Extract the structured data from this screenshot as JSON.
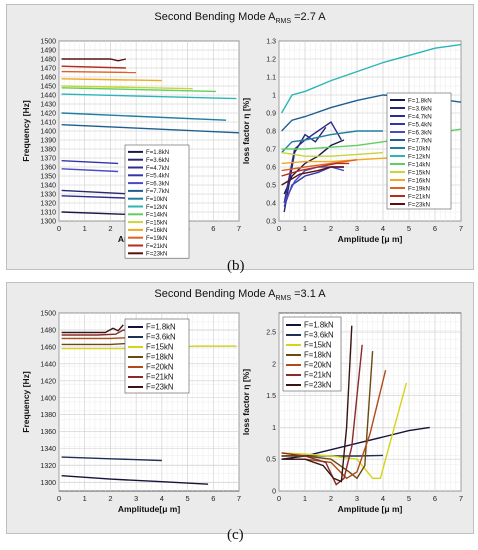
{
  "figure": {
    "caption_b": "(b)",
    "caption_c": "(c)"
  },
  "panel_b": {
    "title_main": "Second Bending Mode  A",
    "title_sub": "RMS",
    "title_tail": " =2.7 A"
  },
  "panel_c": {
    "title_main": "Second Bending Mode  A",
    "title_sub": "RMS",
    "title_tail": " =3.1 A"
  },
  "chart_data": [
    {
      "id": "b-freq",
      "type": "line",
      "xlabel": "Amplitude[μ m]",
      "ylabel": "Frequency [Hz]",
      "xlim": [
        0,
        7
      ],
      "ylim": [
        1300,
        1500
      ],
      "xticks": [
        0,
        1,
        2,
        3,
        4,
        5,
        6,
        7
      ],
      "yticks": [
        1300,
        1310,
        1320,
        1330,
        1340,
        1350,
        1360,
        1370,
        1380,
        1390,
        1400,
        1410,
        1420,
        1430,
        1440,
        1450,
        1460,
        1470,
        1480,
        1490,
        1500
      ],
      "grid": true,
      "legend": "bottom-right",
      "series": [
        {
          "name": "F=1.8kN",
          "color": "#1a1a4a",
          "x": [
            0.1,
            3.0
          ],
          "y": [
            1310,
            1307
          ]
        },
        {
          "name": "F=3.6kN",
          "color": "#262673",
          "x": [
            0.1,
            3.5
          ],
          "y": [
            1334,
            1329
          ]
        },
        {
          "name": "F=4.7kN",
          "color": "#2d2d8f",
          "x": [
            0.1,
            3.1
          ],
          "y": [
            1328,
            1325
          ]
        },
        {
          "name": "F=5.4kN",
          "color": "#3535a8",
          "x": [
            0.1,
            2.3
          ],
          "y": [
            1367,
            1364
          ]
        },
        {
          "name": "F=6.3kN",
          "color": "#4a4ac9",
          "x": [
            0.1,
            2.3
          ],
          "y": [
            1358,
            1355
          ]
        },
        {
          "name": "F=7.7kN",
          "color": "#1f5f8f",
          "x": [
            0.1,
            7.0
          ],
          "y": [
            1407,
            1398
          ]
        },
        {
          "name": "F=10kN",
          "color": "#1e7fa0",
          "x": [
            0.1,
            6.5
          ],
          "y": [
            1420,
            1412
          ]
        },
        {
          "name": "F=12kN",
          "color": "#2cb5b5",
          "x": [
            0.1,
            6.9
          ],
          "y": [
            1441,
            1436
          ]
        },
        {
          "name": "F=14kN",
          "color": "#5fcf5f",
          "x": [
            0.1,
            6.1
          ],
          "y": [
            1448,
            1444
          ]
        },
        {
          "name": "F=15kN",
          "color": "#c8d635",
          "x": [
            0.1,
            5.2
          ],
          "y": [
            1450,
            1447
          ]
        },
        {
          "name": "F=16kN",
          "color": "#f2a81f",
          "x": [
            0.1,
            4.0
          ],
          "y": [
            1458,
            1456
          ]
        },
        {
          "name": "F=19kN",
          "color": "#e06020",
          "x": [
            0.1,
            3.0
          ],
          "y": [
            1466,
            1465
          ]
        },
        {
          "name": "F=21kN",
          "color": "#b52a1a",
          "x": [
            0.1,
            2.6
          ],
          "y": [
            1472,
            1470
          ]
        },
        {
          "name": "F=23kN",
          "color": "#5a1010",
          "x": [
            0.1,
            2.0,
            2.3,
            2.6
          ],
          "y": [
            1480,
            1480,
            1478,
            1480
          ]
        }
      ]
    },
    {
      "id": "b-loss",
      "type": "line",
      "xlabel": "Amplitude [μ m]",
      "ylabel": "loss factor η [%]",
      "xlim": [
        0,
        7
      ],
      "ylim": [
        0.3,
        1.3
      ],
      "xticks": [
        0,
        1,
        2,
        3,
        4,
        5,
        6,
        7
      ],
      "yticks": [
        0.3,
        0.4,
        0.5,
        0.6,
        0.7,
        0.8,
        0.9,
        1.0,
        1.1,
        1.2,
        1.3
      ],
      "grid": true,
      "legend": "right",
      "series": [
        {
          "name": "F=1.8kN",
          "color": "#1a1a4a",
          "x": [
            0.2,
            0.5,
            1.0,
            1.5,
            2.0,
            2.5
          ],
          "y": [
            0.45,
            0.55,
            0.62,
            0.66,
            0.72,
            0.75
          ]
        },
        {
          "name": "F=3.6kN",
          "color": "#262673",
          "x": [
            0.2,
            0.6,
            1.0,
            1.4,
            1.8
          ],
          "y": [
            0.35,
            0.68,
            0.78,
            0.74,
            0.82
          ]
        },
        {
          "name": "F=4.7kN",
          "color": "#2d2d8f",
          "x": [
            0.2,
            0.6,
            1.0,
            1.5,
            2.0,
            2.4
          ],
          "y": [
            0.4,
            0.7,
            0.75,
            0.8,
            0.85,
            0.75
          ]
        },
        {
          "name": "F=5.4kN",
          "color": "#3535a8",
          "x": [
            0.2,
            0.5,
            1.0,
            1.5,
            2.0,
            2.5
          ],
          "y": [
            0.38,
            0.5,
            0.55,
            0.57,
            0.6,
            0.6
          ]
        },
        {
          "name": "F=6.3kN",
          "color": "#4a4ac9",
          "x": [
            0.2,
            0.6,
            1.0,
            1.5,
            2.0,
            2.5
          ],
          "y": [
            0.4,
            0.52,
            0.58,
            0.6,
            0.6,
            0.58
          ]
        },
        {
          "name": "F=7.7kN",
          "color": "#1f5f8f",
          "x": [
            0.1,
            0.5,
            1,
            2,
            3,
            4,
            5,
            6,
            7
          ],
          "y": [
            0.8,
            0.86,
            0.88,
            0.93,
            0.97,
            1.0,
            0.99,
            0.98,
            0.96
          ]
        },
        {
          "name": "F=10kN",
          "color": "#1e7fa0",
          "x": [
            0.1,
            0.5,
            1,
            2,
            3,
            4
          ],
          "y": [
            0.68,
            0.74,
            0.75,
            0.78,
            0.8,
            0.8
          ]
        },
        {
          "name": "F=12kN",
          "color": "#2cb5b5",
          "x": [
            0.1,
            0.5,
            1,
            2,
            3,
            4,
            5,
            6,
            7
          ],
          "y": [
            0.9,
            1.0,
            1.02,
            1.08,
            1.13,
            1.18,
            1.22,
            1.26,
            1.28
          ]
        },
        {
          "name": "F=14kN",
          "color": "#5fcf5f",
          "x": [
            0.1,
            1,
            2,
            3,
            4,
            5,
            6,
            7
          ],
          "y": [
            0.7,
            0.7,
            0.71,
            0.72,
            0.74,
            0.76,
            0.79,
            0.81
          ]
        },
        {
          "name": "F=15kN",
          "color": "#c8d635",
          "x": [
            0.1,
            1,
            2,
            3,
            4
          ],
          "y": [
            0.68,
            0.66,
            0.66,
            0.67,
            0.68
          ]
        },
        {
          "name": "F=16kN",
          "color": "#f2a81f",
          "x": [
            0.1,
            1,
            2,
            3,
            4.2
          ],
          "y": [
            0.62,
            0.63,
            0.63,
            0.64,
            0.65
          ]
        },
        {
          "name": "F=19kN",
          "color": "#e06020",
          "x": [
            0.1,
            1,
            2,
            3
          ],
          "y": [
            0.58,
            0.6,
            0.62,
            0.64
          ]
        },
        {
          "name": "F=21kN",
          "color": "#b52a1a",
          "x": [
            0.1,
            0.8,
            1.5,
            2.2,
            2.7
          ],
          "y": [
            0.55,
            0.58,
            0.6,
            0.62,
            0.62
          ]
        },
        {
          "name": "F=23kN",
          "color": "#5a1010",
          "x": [
            0.1,
            0.8,
            1.5,
            2.0,
            2.5
          ],
          "y": [
            0.5,
            0.56,
            0.58,
            0.6,
            0.6
          ]
        }
      ]
    },
    {
      "id": "c-freq",
      "type": "line",
      "xlabel": "Amplitude[μ m]",
      "ylabel": "Frequency [Hz]",
      "xlim": [
        0,
        7
      ],
      "ylim": [
        1290,
        1500
      ],
      "xticks": [
        0,
        1,
        2,
        3,
        4,
        5,
        6,
        7
      ],
      "yticks": [
        1300,
        1320,
        1340,
        1360,
        1380,
        1400,
        1420,
        1440,
        1460,
        1480,
        1500
      ],
      "grid": true,
      "legend": "top-right",
      "series": [
        {
          "name": "F=1.8kN",
          "color": "#14143a",
          "x": [
            0.1,
            2,
            4,
            5.8
          ],
          "y": [
            1308,
            1304,
            1301,
            1298
          ]
        },
        {
          "name": "F=3.6kN",
          "color": "#1f2f55",
          "x": [
            0.1,
            2,
            4
          ],
          "y": [
            1330,
            1328,
            1326
          ]
        },
        {
          "name": "F=15kN",
          "color": "#d4d41a",
          "x": [
            0.1,
            3,
            4,
            5.3,
            6.9
          ],
          "y": [
            1458,
            1458,
            1459,
            1461,
            1461
          ]
        },
        {
          "name": "F=18kN",
          "color": "#6b4a10",
          "x": [
            0.1,
            2,
            3.2,
            3.6
          ],
          "y": [
            1463,
            1463,
            1465,
            1468
          ]
        },
        {
          "name": "F=20kN",
          "color": "#b04a1a",
          "x": [
            0.1,
            2,
            2.8,
            3.2
          ],
          "y": [
            1470,
            1470,
            1471,
            1476
          ]
        },
        {
          "name": "F=21kN",
          "color": "#8a2a2a",
          "x": [
            0.1,
            1.5,
            2.2,
            2.5,
            2.8
          ],
          "y": [
            1474,
            1474,
            1475,
            1480,
            1478
          ]
        },
        {
          "name": "F=23kN",
          "color": "#3a1510",
          "x": [
            0.1,
            1.8,
            2.1,
            2.3,
            2.5
          ],
          "y": [
            1477,
            1477,
            1482,
            1479,
            1486
          ]
        }
      ]
    },
    {
      "id": "c-loss",
      "type": "line",
      "xlabel": "Amplitude [μ m]",
      "ylabel": "loss factor η [%]",
      "xlim": [
        0,
        7
      ],
      "ylim": [
        0,
        2.8
      ],
      "xticks": [
        0,
        1,
        2,
        3,
        4,
        5,
        6,
        7
      ],
      "yticks": [
        0,
        0.5,
        1,
        1.5,
        2,
        2.5
      ],
      "grid": true,
      "legend": "top-left",
      "series": [
        {
          "name": "F=1.8kN",
          "color": "#14143a",
          "x": [
            0.1,
            1,
            2,
            3,
            4,
            5,
            5.8
          ],
          "y": [
            0.5,
            0.55,
            0.65,
            0.75,
            0.85,
            0.95,
            1.0
          ]
        },
        {
          "name": "F=3.6kN",
          "color": "#1f2f55",
          "x": [
            0.1,
            1,
            2,
            3,
            4
          ],
          "y": [
            0.55,
            0.56,
            0.55,
            0.55,
            0.56
          ]
        },
        {
          "name": "F=15kN",
          "color": "#d4d41a",
          "x": [
            0.1,
            1,
            2,
            3,
            3.6,
            3.9,
            4.3,
            4.9
          ],
          "y": [
            0.6,
            0.58,
            0.55,
            0.5,
            0.2,
            0.2,
            0.8,
            1.7
          ]
        },
        {
          "name": "F=18kN",
          "color": "#6b4a10",
          "x": [
            0.1,
            1,
            2,
            2.7,
            3.0,
            3.3,
            3.6
          ],
          "y": [
            0.55,
            0.55,
            0.5,
            0.3,
            0.2,
            0.4,
            2.2
          ]
        },
        {
          "name": "F=20kN",
          "color": "#b04a1a",
          "x": [
            0.1,
            1,
            2,
            2.6,
            3.0,
            3.5,
            4.1
          ],
          "y": [
            0.5,
            0.5,
            0.45,
            0.2,
            0.3,
            0.9,
            1.9
          ]
        },
        {
          "name": "F=21kN",
          "color": "#8a2a2a",
          "x": [
            0.1,
            1,
            1.8,
            2.2,
            2.5,
            2.8,
            3.2
          ],
          "y": [
            0.6,
            0.55,
            0.45,
            0.1,
            0.2,
            0.7,
            2.3
          ]
        },
        {
          "name": "F=23kN",
          "color": "#3a1510",
          "x": [
            0.1,
            1,
            1.7,
            2.1,
            2.4,
            2.6,
            2.8
          ],
          "y": [
            0.5,
            0.5,
            0.4,
            0.2,
            0.15,
            1.0,
            2.6
          ]
        }
      ]
    }
  ]
}
